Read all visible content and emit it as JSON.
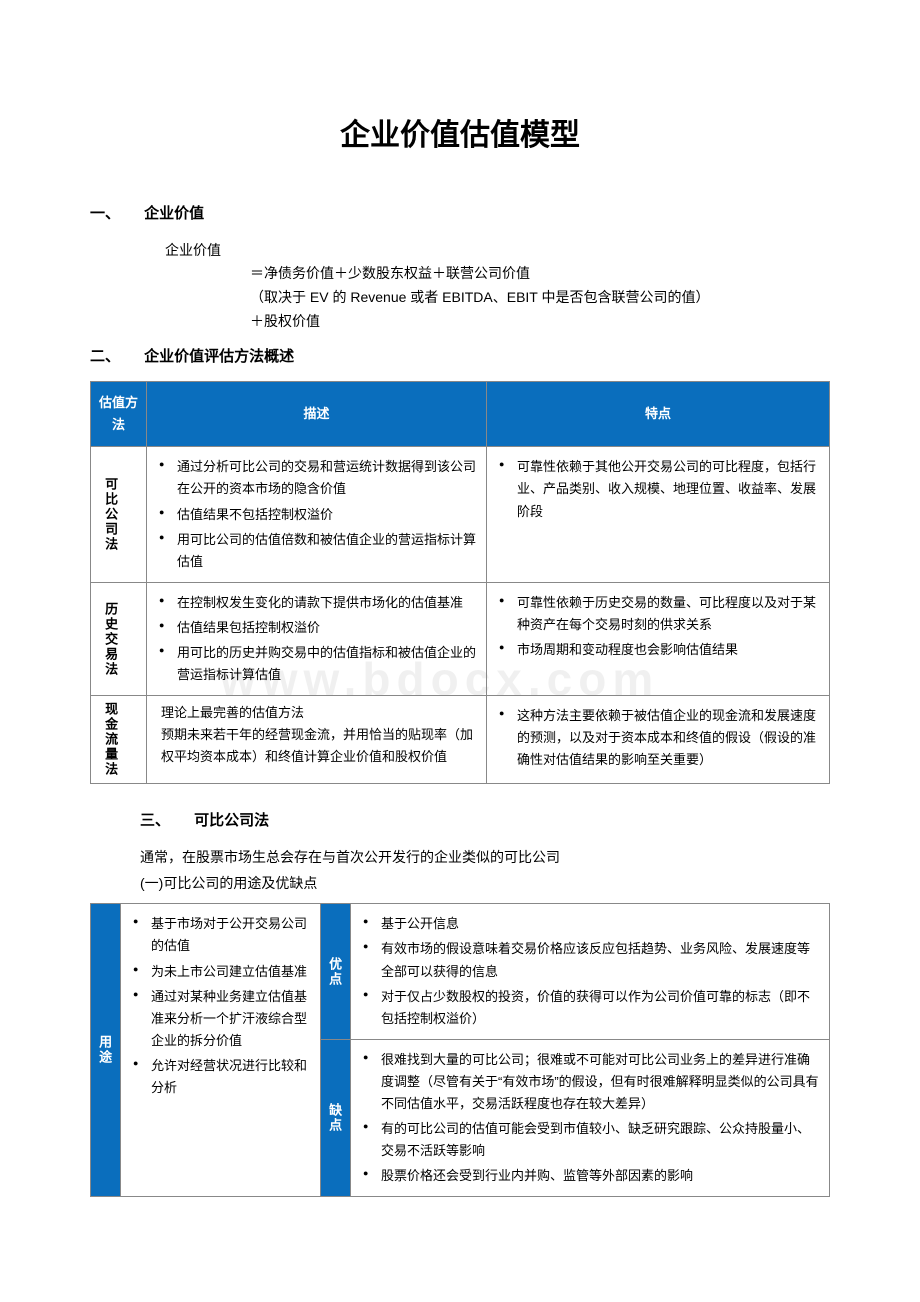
{
  "colors": {
    "header_bg": "#0a6ebd",
    "header_fg": "#ffffff",
    "border": "#888888",
    "text": "#000000",
    "bg": "#ffffff"
  },
  "title": "企业价值估值模型",
  "sec1": {
    "num": "一、",
    "heading": "企业价值",
    "label": "企业价值",
    "line1": "＝净债务价值＋少数股东权益＋联营公司价值",
    "line2": "（取决于 EV 的 Revenue 或者 EBITDA、EBIT 中是否包含联营公司的值）",
    "line3": "＋股权价值"
  },
  "sec2": {
    "num": "二、",
    "heading": "企业价值评估方法概述",
    "headers": {
      "c1": "估值方法",
      "c2": "描述",
      "c3": "特点"
    },
    "rows": [
      {
        "name": "可比公司法",
        "desc": [
          "通过分析可比公司的交易和营运统计数据得到该公司在公开的资本市场的隐含价值",
          "估值结果不包括控制权溢价",
          "用可比公司的估值倍数和被估值企业的营运指标计算估值"
        ],
        "feat": [
          "可靠性依赖于其他公开交易公司的可比程度，包括行业、产品类别、收入规模、地理位置、收益率、发展阶段"
        ]
      },
      {
        "name": "历史交易法",
        "desc": [
          "在控制权发生变化的请款下提供市场化的估值基准",
          "估值结果包括控制权溢价",
          "用可比的历史并购交易中的估值指标和被估值企业的营运指标计算估值"
        ],
        "feat": [
          "可靠性依赖于历史交易的数量、可比程度以及对于某种资产在每个交易时刻的供求关系",
          "市场周期和变动程度也会影响估值结果"
        ]
      },
      {
        "name": "现金流量法",
        "desc_plain": "理论上最完善的估值方法\n预期未来若干年的经营现金流，并用恰当的贴现率（加权平均资本成本）和终值计算企业价值和股权价值",
        "feat": [
          "这种方法主要依赖于被估值企业的现金流和发展速度的预测，以及对于资本成本和终值的假设（假设的准确性对估值结果的影响至关重要）"
        ]
      }
    ]
  },
  "sec3": {
    "num": "三、",
    "heading": "可比公司法",
    "intro": "通常，在股票市场生总会存在与首次公开发行的企业类似的可比公司",
    "sub": "(一)可比公司的用途及优缺点",
    "row_label_use": "用途",
    "row_label_adv": "优点",
    "row_label_dis": "缺点",
    "uses": [
      "基于市场对于公开交易公司的估值",
      "为未上市公司建立估值基准",
      "通过对某种业务建立估值基准来分析一个扩汗液综合型企业的拆分价值",
      "允许对经营状况进行比较和分析"
    ],
    "adv": [
      "基于公开信息",
      "有效市场的假设意味着交易价格应该反应包括趋势、业务风险、发展速度等全部可以获得的信息",
      "对于仅占少数股权的投资，价值的获得可以作为公司价值可靠的标志（即不包括控制权溢价）"
    ],
    "dis": [
      "很难找到大量的可比公司；很难或不可能对可比公司业务上的差异进行准确度调整（尽管有关于“有效市场”的假设，但有时很难解释明显类似的公司具有不同估值水平，交易活跃程度也存在较大差异）",
      "有的可比公司的估值可能会受到市值较小、缺乏研究跟踪、公众持股量小、交易不活跃等影响",
      "股票价格还会受到行业内并购、监管等外部因素的影响"
    ]
  },
  "watermark": "www.bdocx.com"
}
